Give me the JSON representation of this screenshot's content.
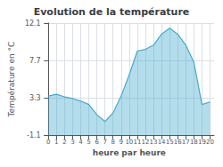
{
  "chart_data": {
    "type": "area",
    "title": "Evolution de la température",
    "xlabel": "heure par heure",
    "ylabel": "Température en °C",
    "x": [
      0,
      1,
      2,
      3,
      4,
      5,
      6,
      7,
      8,
      9,
      10,
      11,
      12,
      13,
      14,
      15,
      16,
      17,
      18,
      19,
      20
    ],
    "values": [
      3.5,
      3.7,
      3.4,
      3.2,
      2.9,
      2.5,
      1.3,
      0.5,
      1.5,
      3.5,
      6.0,
      8.8,
      9.0,
      9.5,
      10.8,
      11.5,
      10.8,
      9.5,
      7.5,
      2.5,
      2.8
    ],
    "color": "#44aacc",
    "xlim": [
      -0.5,
      20.5
    ],
    "xticks": [
      0,
      1,
      2,
      3,
      4,
      5,
      6,
      7,
      8,
      9,
      10,
      11,
      12,
      13,
      14,
      15,
      16,
      17,
      18,
      19,
      20
    ],
    "ylim": [
      -1.1,
      12.1
    ],
    "yticks": [
      -1.1,
      3.3,
      7.7,
      12.1
    ],
    "grid": true
  }
}
